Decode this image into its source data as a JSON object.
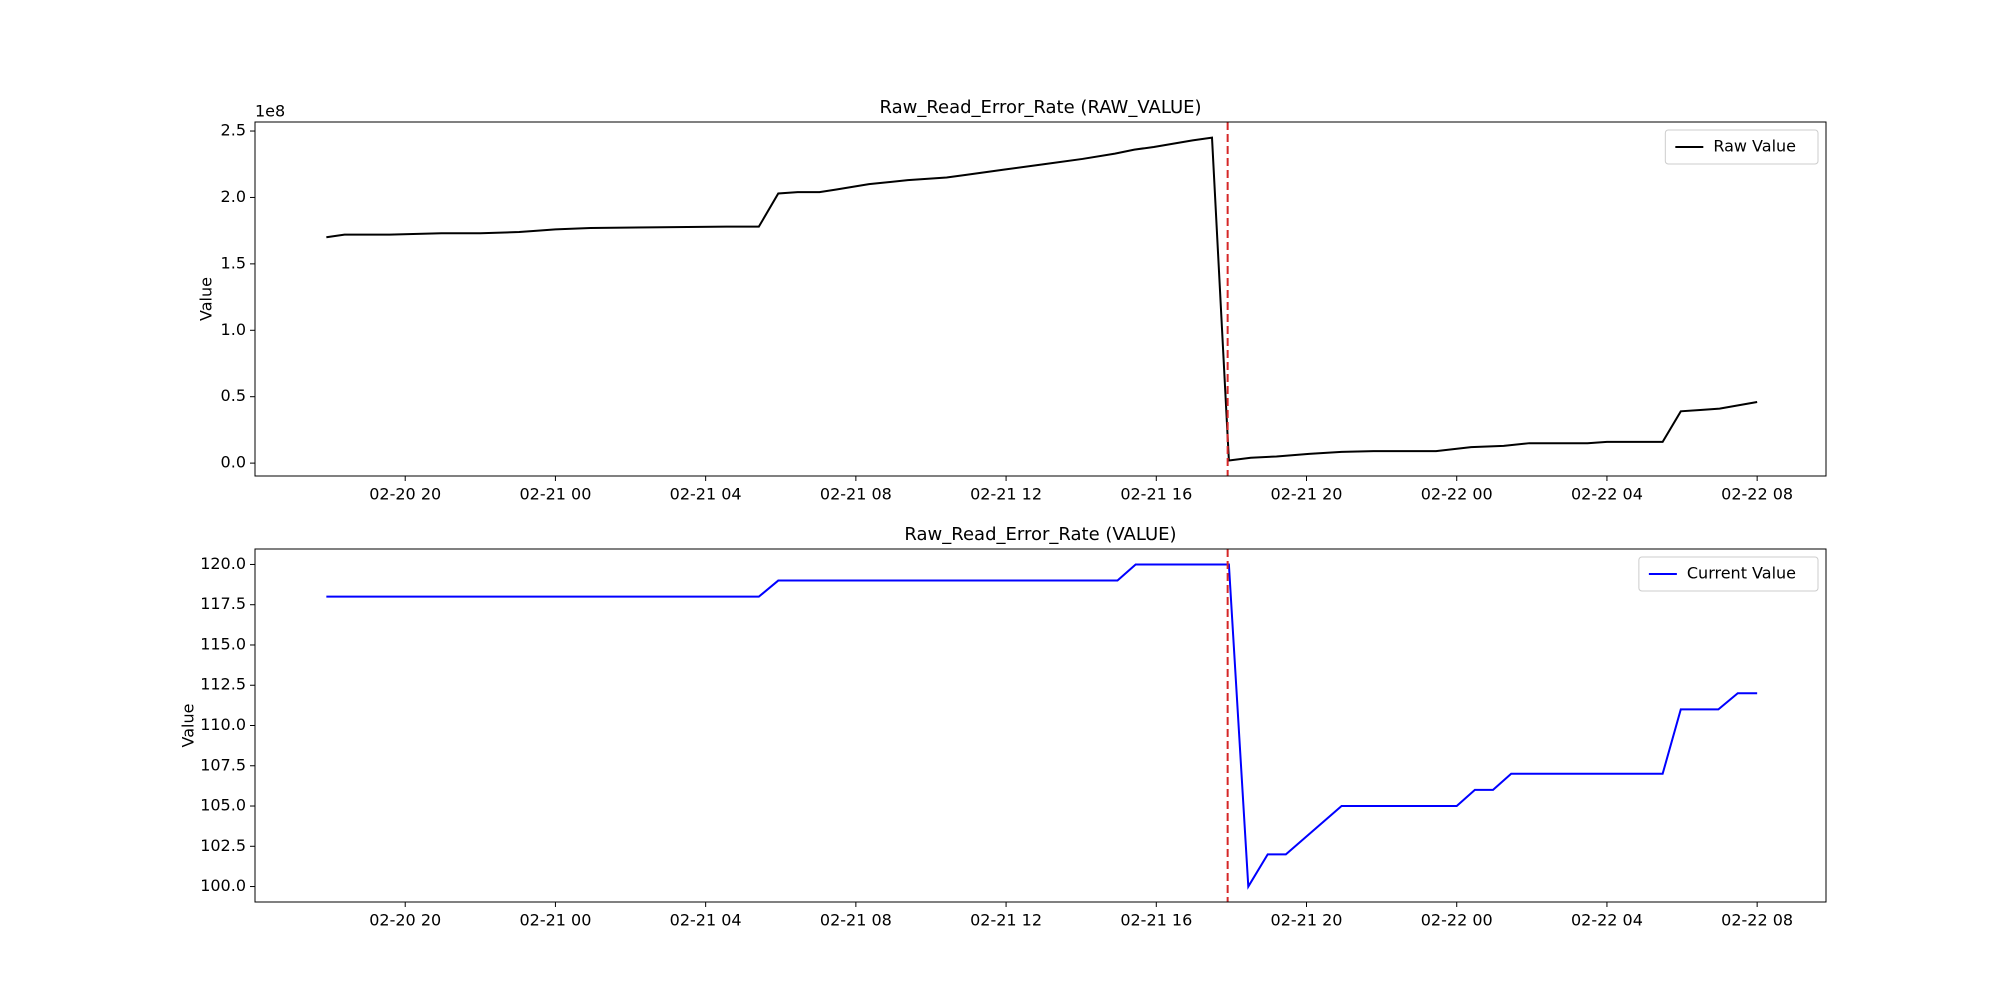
{
  "chart_data": [
    {
      "type": "line",
      "title": "Raw_Read_Error_Rate (RAW_VALUE)",
      "ylabel": "Value",
      "offset_label": "1e8",
      "x": [
        "02-20 17:54",
        "02-20 18:23",
        "02-20 19:35",
        "02-20 20:58",
        "02-20 22:00",
        "02-20 23:02",
        "02-20 23:33",
        "02-21 00:00",
        "02-21 00:56",
        "02-21 02:29",
        "02-21 04:33",
        "02-21 05:25",
        "02-21 05:56",
        "02-21 06:27",
        "02-21 07:02",
        "02-21 07:29",
        "02-21 08:21",
        "02-21 09:23",
        "02-21 10:25",
        "02-21 10:56",
        "02-21 11:58",
        "02-21 13:00",
        "02-21 14:02",
        "02-21 14:54",
        "02-21 15:25",
        "02-21 15:56",
        "02-21 16:58",
        "02-21 17:29",
        "02-21 17:56",
        "02-21 18:31",
        "02-21 19:12",
        "02-21 20:04",
        "02-21 20:56",
        "02-21 21:47",
        "02-21 22:49",
        "02-21 23:27",
        "02-22 00:23",
        "02-22 01:15",
        "02-22 01:56",
        "02-22 03:29",
        "02-22 04:00",
        "02-22 05:29",
        "02-22 05:58",
        "02-22 06:29",
        "02-22 07:00",
        "02-22 08:00"
      ],
      "series": [
        {
          "name": "Raw Value",
          "color": "#000000",
          "values": [
            1.7,
            1.72,
            1.72,
            1.73,
            1.73,
            1.74,
            1.75,
            1.76,
            1.77,
            1.775,
            1.78,
            1.78,
            2.03,
            2.04,
            2.04,
            2.06,
            2.1,
            2.13,
            2.15,
            2.17,
            2.21,
            2.25,
            2.29,
            2.33,
            2.36,
            2.38,
            2.43,
            2.45,
            0.02,
            0.04,
            0.05,
            0.07,
            0.085,
            0.09,
            0.09,
            0.09,
            0.12,
            0.13,
            0.15,
            0.15,
            0.16,
            0.16,
            0.39,
            0.4,
            0.41,
            0.46
          ]
        }
      ],
      "xlim": [
        "02-20 16:00",
        "02-22 09:50"
      ],
      "xticks": [
        "02-20 20",
        "02-21 00",
        "02-21 04",
        "02-21 08",
        "02-21 12",
        "02-21 16",
        "02-21 20",
        "02-22 00",
        "02-22 04",
        "02-22 08"
      ],
      "ylim": [
        -0.097,
        2.568
      ],
      "yticks": [
        {
          "value": 0,
          "label": "0.0"
        },
        0.5,
        {
          "value": 1,
          "label": "1.0"
        },
        1.5,
        {
          "value": 2,
          "label": "2.0"
        },
        2.5
      ],
      "vline": {
        "x": "02-21 17:54",
        "color": "#d62728"
      },
      "legend": "upper right"
    },
    {
      "type": "line",
      "title": "Raw_Read_Error_Rate (VALUE)",
      "ylabel": "Value",
      "x": [
        "02-20 17:54",
        "02-21 05:25",
        "02-21 05:56",
        "02-21 14:58",
        "02-21 15:27",
        "02-21 17:56",
        "02-21 18:27",
        "02-21 18:58",
        "02-21 19:27",
        "02-21 20:56",
        "02-22 00:00",
        "02-22 00:29",
        "02-22 00:58",
        "02-22 01:27",
        "02-22 05:29",
        "02-22 05:58",
        "02-22 06:58",
        "02-22 07:29",
        "02-22 08:00"
      ],
      "series": [
        {
          "name": "Current Value",
          "color": "#0000ff",
          "values": [
            118,
            118,
            119,
            119,
            120,
            120,
            100,
            102,
            102,
            105,
            105,
            106,
            106,
            107,
            107,
            111,
            111,
            112,
            112
          ]
        }
      ],
      "xlim": [
        "02-20 16:00",
        "02-22 09:50"
      ],
      "xticks": [
        "02-20 20",
        "02-21 00",
        "02-21 04",
        "02-21 08",
        "02-21 12",
        "02-21 16",
        "02-21 20",
        "02-22 00",
        "02-22 04",
        "02-22 08"
      ],
      "ylim": [
        99.04,
        120.96
      ],
      "yticks": [
        {
          "value": 100,
          "label": "100.0"
        },
        102.5,
        {
          "value": 105,
          "label": "105.0"
        },
        107.5,
        {
          "value": 110,
          "label": "110.0"
        },
        112.5,
        {
          "value": 115,
          "label": "115.0"
        },
        117.5,
        {
          "value": 120,
          "label": "120.0"
        }
      ],
      "vline": {
        "x": "02-21 17:54",
        "color": "#d62728"
      },
      "legend": "upper right"
    }
  ]
}
